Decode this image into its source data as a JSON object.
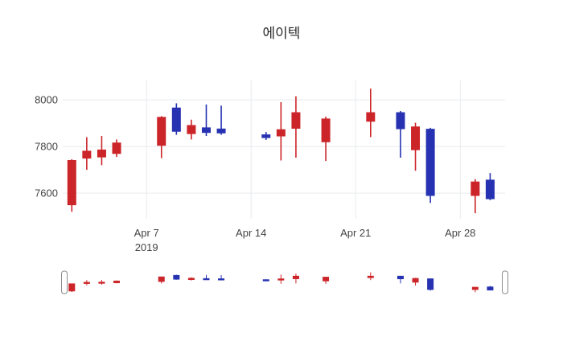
{
  "chart": {
    "title": "에이텍"
  },
  "chart_data": {
    "type": "candlestick",
    "title": "에이텍",
    "increasing_color": "#cc2529",
    "decreasing_color": "#2632b2",
    "grid": true,
    "legend": false,
    "y_axis": {
      "range": [
        7490,
        8083
      ],
      "ticks": [
        {
          "label": "8000",
          "value": 8000
        },
        {
          "label": "7800",
          "value": 7800
        },
        {
          "label": "7600",
          "value": 7600
        }
      ]
    },
    "x_axis": {
      "range": [
        "2019-04-01T12:00:00",
        "2019-05-01T00:00:00"
      ],
      "ticks": [
        {
          "label": "Apr 7",
          "sublabel": "2019",
          "date": "2019-04-07"
        },
        {
          "label": "Apr 14",
          "sublabel": "",
          "date": "2019-04-14"
        },
        {
          "label": "Apr 21",
          "sublabel": "",
          "date": "2019-04-21"
        },
        {
          "label": "Apr 28",
          "sublabel": "",
          "date": "2019-04-28"
        }
      ]
    },
    "rangeslider": {
      "enabled": true,
      "range": [
        7500,
        8060
      ]
    },
    "candles": [
      {
        "date": "2019-04-02",
        "open": 7550,
        "high": 7745,
        "low": 7520,
        "close": 7740
      },
      {
        "date": "2019-04-03",
        "open": 7750,
        "high": 7840,
        "low": 7700,
        "close": 7780
      },
      {
        "date": "2019-04-04",
        "open": 7755,
        "high": 7845,
        "low": 7720,
        "close": 7785
      },
      {
        "date": "2019-04-05",
        "open": 7770,
        "high": 7830,
        "low": 7755,
        "close": 7815
      },
      {
        "date": "2019-04-08",
        "open": 7805,
        "high": 7930,
        "low": 7750,
        "close": 7925
      },
      {
        "date": "2019-04-09",
        "open": 7965,
        "high": 7985,
        "low": 7850,
        "close": 7865
      },
      {
        "date": "2019-04-10",
        "open": 7855,
        "high": 7915,
        "low": 7830,
        "close": 7890
      },
      {
        "date": "2019-04-11",
        "open": 7880,
        "high": 7980,
        "low": 7845,
        "close": 7860
      },
      {
        "date": "2019-04-12",
        "open": 7875,
        "high": 7975,
        "low": 7850,
        "close": 7858
      },
      {
        "date": "2019-04-15",
        "open": 7850,
        "high": 7862,
        "low": 7828,
        "close": 7838
      },
      {
        "date": "2019-04-16",
        "open": 7845,
        "high": 7990,
        "low": 7740,
        "close": 7872
      },
      {
        "date": "2019-04-17",
        "open": 7878,
        "high": 8015,
        "low": 7752,
        "close": 7945
      },
      {
        "date": "2019-04-19",
        "open": 7820,
        "high": 7928,
        "low": 7738,
        "close": 7918
      },
      {
        "date": "2019-04-22",
        "open": 7908,
        "high": 8048,
        "low": 7840,
        "close": 7945
      },
      {
        "date": "2019-04-24",
        "open": 7945,
        "high": 7952,
        "low": 7752,
        "close": 7876
      },
      {
        "date": "2019-04-25",
        "open": 7786,
        "high": 7902,
        "low": 7696,
        "close": 7884
      },
      {
        "date": "2019-04-26",
        "open": 7874,
        "high": 7880,
        "low": 7558,
        "close": 7590
      },
      {
        "date": "2019-04-29",
        "open": 7590,
        "high": 7660,
        "low": 7514,
        "close": 7648
      },
      {
        "date": "2019-04-30",
        "open": 7656,
        "high": 7686,
        "low": 7570,
        "close": 7576
      }
    ]
  }
}
